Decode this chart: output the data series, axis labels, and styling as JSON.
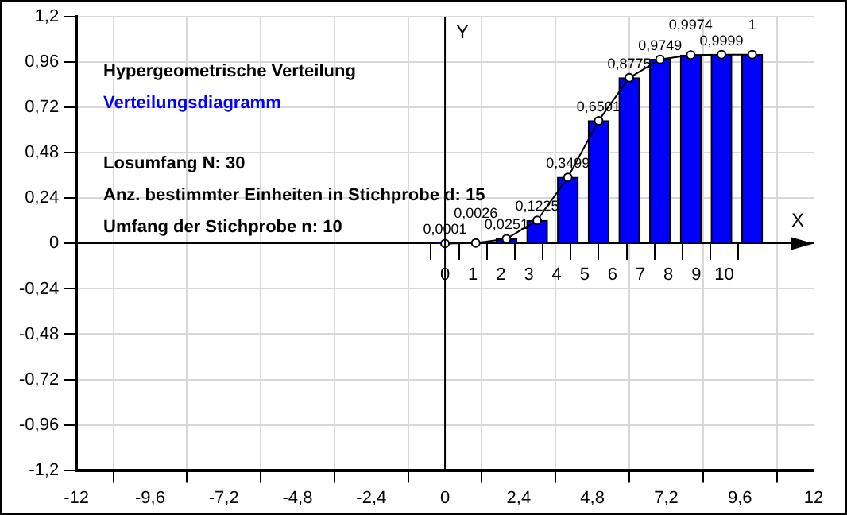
{
  "chart_data": {
    "type": "bar",
    "title": "Hypergeometrische Verteilung",
    "subtitle": "Verteilungsdiagramm",
    "xlabel": "X",
    "ylabel": "Y",
    "annotations": [
      "Losumfang N: 30",
      "Anz. bestimmter Einheiten in Stichprobe d: 15",
      "Umfang der Stichprobe n: 10"
    ],
    "x": [
      0,
      1,
      2,
      3,
      4,
      5,
      6,
      7,
      8,
      9,
      10
    ],
    "series": [
      {
        "color": "#0000ff",
        "values": [
          0.0001,
          0.0026,
          0.0251,
          0.1225,
          0.3499,
          0.6501,
          0.8775,
          0.9749,
          0.9974,
          0.9999,
          1
        ],
        "value_labels": [
          "0,0001",
          "0,0026",
          "0,0251",
          "0,1225",
          "0,3499",
          "0,6501",
          "0,8775",
          "0,9749",
          "0,9974",
          "0,9999",
          "1"
        ]
      },
      {
        "type": "line",
        "color": "#000000",
        "marker": "circle",
        "values": [
          0.0001,
          0.0026,
          0.0251,
          0.1225,
          0.3499,
          0.6501,
          0.8775,
          0.9749,
          0.9974,
          0.9999,
          1
        ]
      }
    ],
    "xlim": [
      -12,
      12
    ],
    "xticks": [
      {
        "value": -12,
        "label": "-12"
      },
      {
        "value": -9.6,
        "label": "-9,6"
      },
      {
        "value": -7.2,
        "label": "-7,2"
      },
      {
        "value": -4.8,
        "label": "-4,8"
      },
      {
        "value": -2.4,
        "label": "-2,4"
      },
      {
        "value": 0,
        "label": "0"
      },
      {
        "value": 2.4,
        "label": "2,4"
      },
      {
        "value": 4.8,
        "label": "4,8"
      },
      {
        "value": 7.2,
        "label": "7,2"
      },
      {
        "value": 9.6,
        "label": "9,6"
      },
      {
        "value": 12,
        "label": "12"
      }
    ],
    "ylim": [
      -1.2,
      1.2
    ],
    "yticks": [
      {
        "value": -1.2,
        "label": "-1,2"
      },
      {
        "value": -0.96,
        "label": "-0,96"
      },
      {
        "value": -0.72,
        "label": "-0,72"
      },
      {
        "value": -0.48,
        "label": "-0,48"
      },
      {
        "value": -0.24,
        "label": "-0,24"
      },
      {
        "value": 0,
        "label": "0"
      },
      {
        "value": 0.24,
        "label": "0,24"
      },
      {
        "value": 0.48,
        "label": "0,48"
      },
      {
        "value": 0.72,
        "label": "0,72"
      },
      {
        "value": 0.96,
        "label": "0,96"
      },
      {
        "value": 1.2,
        "label": "1,2"
      }
    ],
    "x2lim": [
      -12,
      12
    ],
    "x2ticks": [
      0,
      1,
      2,
      3,
      4,
      5,
      6,
      7,
      8,
      9,
      10
    ],
    "grid": true,
    "legend": false
  }
}
